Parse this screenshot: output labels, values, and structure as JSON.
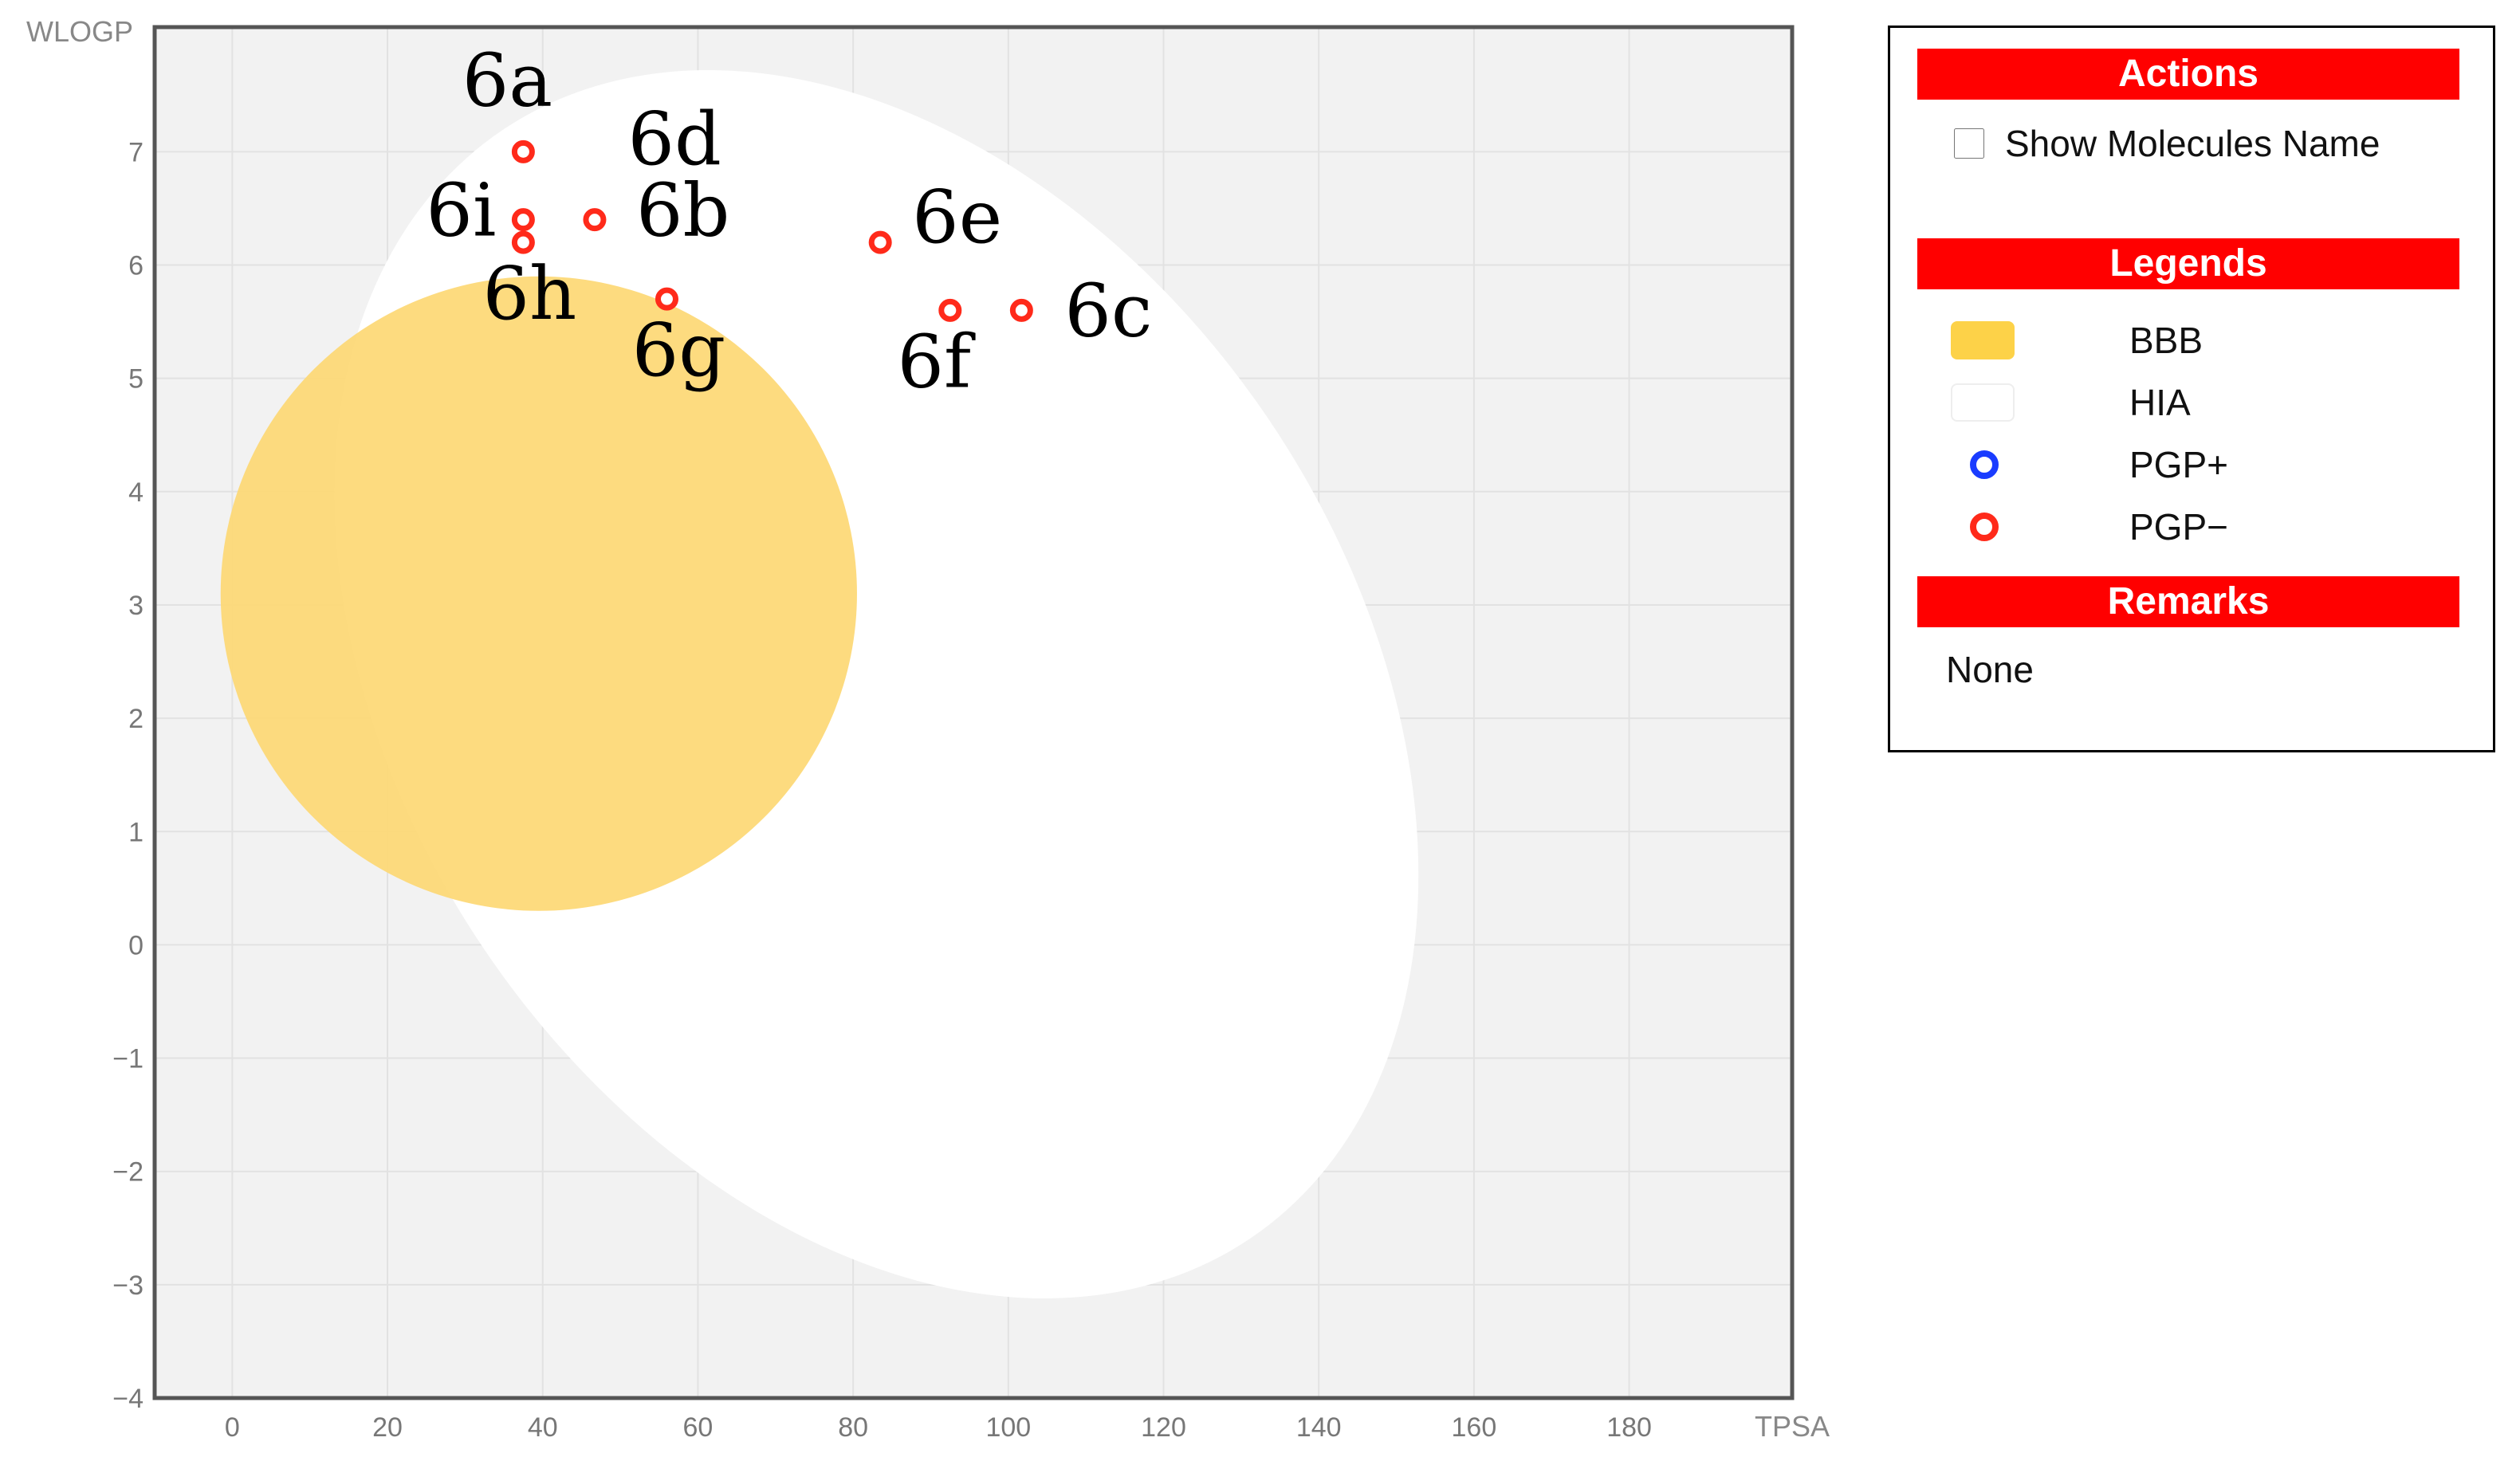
{
  "chart_data": {
    "type": "scatter",
    "xlabel": "TPSA",
    "ylabel": "WLOGP",
    "xlim": [
      -10,
      201
    ],
    "ylim": [
      -4,
      8.1
    ],
    "xticks": [
      0,
      20,
      40,
      60,
      80,
      100,
      120,
      140,
      160,
      180
    ],
    "yticks": [
      -4,
      -3,
      -2,
      -1,
      0,
      1,
      2,
      3,
      4,
      5,
      6,
      7
    ],
    "grid": true,
    "regions": [
      {
        "name": "HIA",
        "color": "#ffffff",
        "center": [
          83.0,
          2.3
        ],
        "rx": 61.0,
        "ry": 5.9
      },
      {
        "name": "BBB",
        "color": "#fdd874",
        "center": [
          39.5,
          3.1
        ],
        "rx": 41.0,
        "ry": 2.8
      }
    ],
    "points": [
      {
        "label": "6a",
        "x": 37.5,
        "y": 7.0,
        "series": "PGP−"
      },
      {
        "label": "6b",
        "x": 46.7,
        "y": 6.4,
        "series": "PGP−"
      },
      {
        "label": "6i",
        "x": 37.5,
        "y": 6.4,
        "series": "PGP−"
      },
      {
        "label": "6h",
        "x": 37.5,
        "y": 6.2,
        "series": "PGP−"
      },
      {
        "label": "6g",
        "x": 56.0,
        "y": 5.7,
        "series": "PGP−"
      },
      {
        "label": "6e",
        "x": 83.5,
        "y": 6.2,
        "series": "PGP−"
      },
      {
        "label": "6f",
        "x": 92.5,
        "y": 5.6,
        "series": "PGP−"
      },
      {
        "label": "6c",
        "x": 101.7,
        "y": 5.6,
        "series": "PGP−"
      }
    ],
    "extra_labels": [
      {
        "label": "6d",
        "x": 57.0,
        "y": 7.1
      }
    ]
  },
  "colors": {
    "plot_bg": "#f2f2f2",
    "grid": "#e2e2e2",
    "axis": "#555555",
    "point_neg": "#ff2a1a",
    "point_pos": "#1a3cff",
    "header": "#ff0000"
  },
  "panel": {
    "actions_title": "Actions",
    "show_names_label": "Show Molecules Name",
    "legends_title": "Legends",
    "legend_items": [
      {
        "label": "BBB",
        "kind": "swatch",
        "color": "#fdd248"
      },
      {
        "label": "HIA",
        "kind": "swatch",
        "color": "#ffffff"
      },
      {
        "label": "PGP+",
        "kind": "ring",
        "color": "#1a3cff"
      },
      {
        "label": "PGP−",
        "kind": "ring",
        "color": "#ff2a1a"
      }
    ],
    "remarks_title": "Remarks",
    "remarks_text": "None"
  }
}
